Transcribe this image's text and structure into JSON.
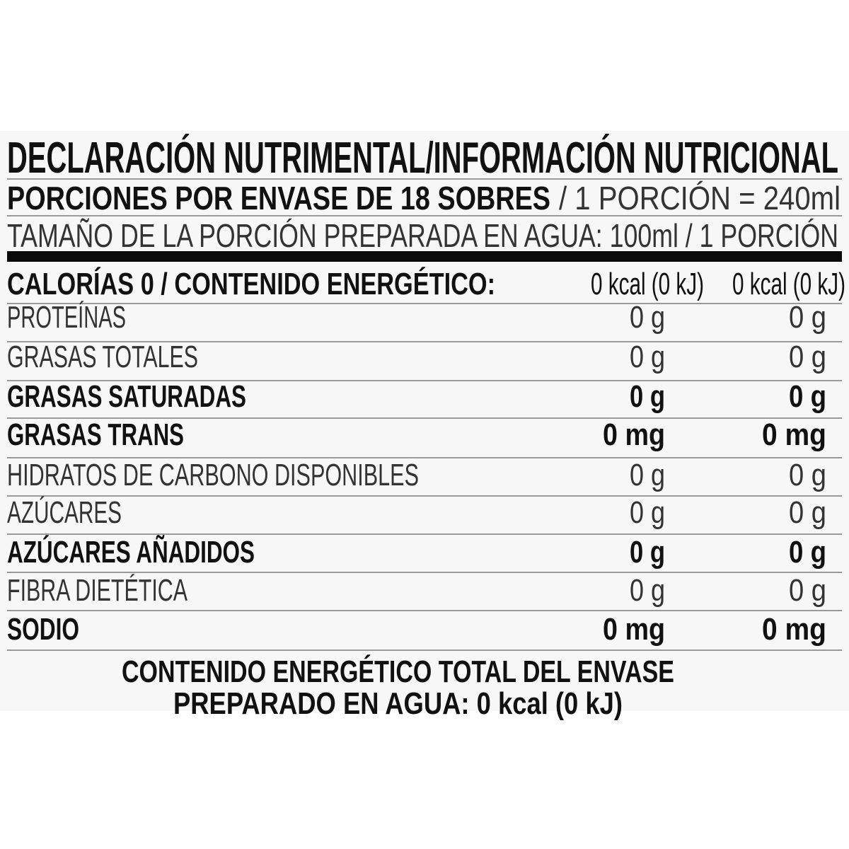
{
  "title": "DECLARACIÓN NUTRIMENTAL/INFORMACIÓN NUTRICIONAL",
  "servings_bold": "PORCIONES POR ENVASE DE 18 SOBRES",
  "servings_light": "/ 1 PORCIÓN = 240ml",
  "serving_size": "TAMAÑO DE LA PORCIÓN PREPARADA EN AGUA: 100ml / 1 PORCIÓN",
  "calories": {
    "label": "CALORÍAS 0 / CONTENIDO ENERGÉTICO:",
    "per_100ml": "0 kcal (0 kJ)",
    "per_portion": "0 kcal (0 kJ)"
  },
  "rows": [
    {
      "label": "PROTEÍNAS",
      "bold": false,
      "per_100ml": "0 g",
      "per_portion": "0 g"
    },
    {
      "label": "GRASAS TOTALES",
      "bold": false,
      "per_100ml": "0 g",
      "per_portion": "0 g"
    },
    {
      "label": "GRASAS SATURADAS",
      "bold": true,
      "per_100ml": "0 g",
      "per_portion": "0 g"
    },
    {
      "label": "GRASAS TRANS",
      "bold": true,
      "per_100ml": "0 mg",
      "per_portion": "0 mg"
    },
    {
      "label": "HIDRATOS DE CARBONO DISPONIBLES",
      "bold": false,
      "per_100ml": "0 g",
      "per_portion": "0 g"
    },
    {
      "label": "AZÚCARES",
      "bold": false,
      "per_100ml": "0 g",
      "per_portion": "0 g"
    },
    {
      "label": "AZÚCARES AÑADIDOS",
      "bold": true,
      "per_100ml": "0 g",
      "per_portion": "0 g"
    },
    {
      "label": "FIBRA DIETÉTICA",
      "bold": false,
      "per_100ml": "0 g",
      "per_portion": "0 g"
    },
    {
      "label": "SODIO",
      "bold": true,
      "per_100ml": "0 mg",
      "per_portion": "0 mg"
    }
  ],
  "footer": {
    "line1": "CONTENIDO ENERGÉTICO TOTAL DEL ENVASE",
    "line2": "PREPARADO EN AGUA: 0 kcal (0 kJ)"
  }
}
